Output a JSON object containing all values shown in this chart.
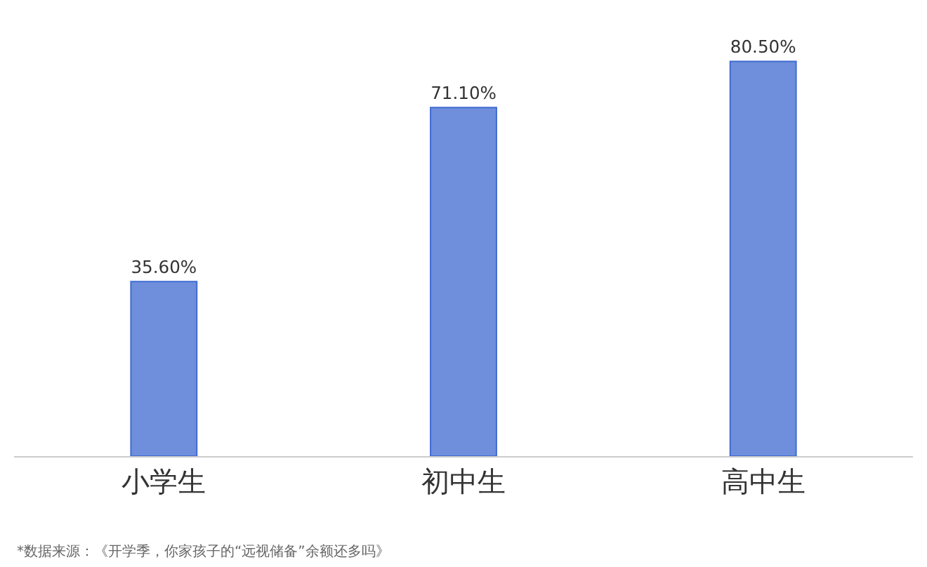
{
  "chart_data": {
    "type": "bar",
    "categories": [
      "小学生",
      "初中生",
      "高中生"
    ],
    "values": [
      35.6,
      71.1,
      80.5
    ],
    "value_labels": [
      "35.60%",
      "71.10%",
      "80.50%"
    ],
    "color": "#6f8fdc",
    "grid": false,
    "legend": false,
    "annotations": [
      "*数据来源：《开学季，你家孩子的“远视储备”余额还多吗》"
    ]
  }
}
